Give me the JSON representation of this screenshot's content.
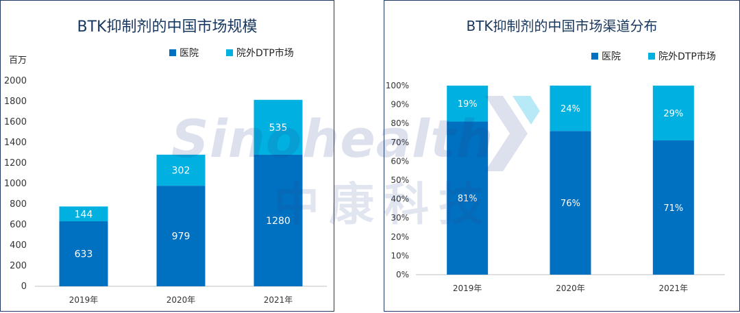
{
  "colors": {
    "hospital": "#0070c0",
    "dtp": "#00b0e0",
    "axis": "#bfbfbf",
    "title": "#17375e"
  },
  "watermark": {
    "text": "Sinohealth",
    "cn": "中康科技"
  },
  "chart_data": [
    {
      "type": "bar",
      "stacked": true,
      "title": "BTK抑制剂的中国市场规模",
      "ylabel": "百万",
      "ylim": [
        0,
        2000
      ],
      "yticks": [
        0,
        200,
        400,
        600,
        800,
        1000,
        1200,
        1400,
        1600,
        1800,
        2000
      ],
      "categories": [
        "2019年",
        "2020年",
        "2021年"
      ],
      "series": [
        {
          "name": "医院",
          "values": [
            633,
            979,
            1280
          ],
          "labels": [
            "633",
            "979",
            "1280"
          ]
        },
        {
          "name": "院外DTP市场",
          "values": [
            144,
            302,
            535
          ],
          "labels": [
            "144",
            "302",
            "535"
          ]
        }
      ],
      "legend": "top-right",
      "grid": false
    },
    {
      "type": "bar",
      "stacked": true,
      "title": "BTK抑制剂的中国市场渠道分布",
      "ylim": [
        0,
        100
      ],
      "yticks": [
        "0%",
        "10%",
        "20%",
        "30%",
        "40%",
        "50%",
        "60%",
        "70%",
        "80%",
        "90%",
        "100%"
      ],
      "categories": [
        "2019年",
        "2020年",
        "2021年"
      ],
      "series": [
        {
          "name": "医院",
          "values": [
            81,
            76,
            71
          ],
          "labels": [
            "81%",
            "76%",
            "71%"
          ]
        },
        {
          "name": "院外DTP市场",
          "values": [
            19,
            24,
            29
          ],
          "labels": [
            "19%",
            "24%",
            "29%"
          ]
        }
      ],
      "legend": "top-right",
      "grid": false
    }
  ]
}
